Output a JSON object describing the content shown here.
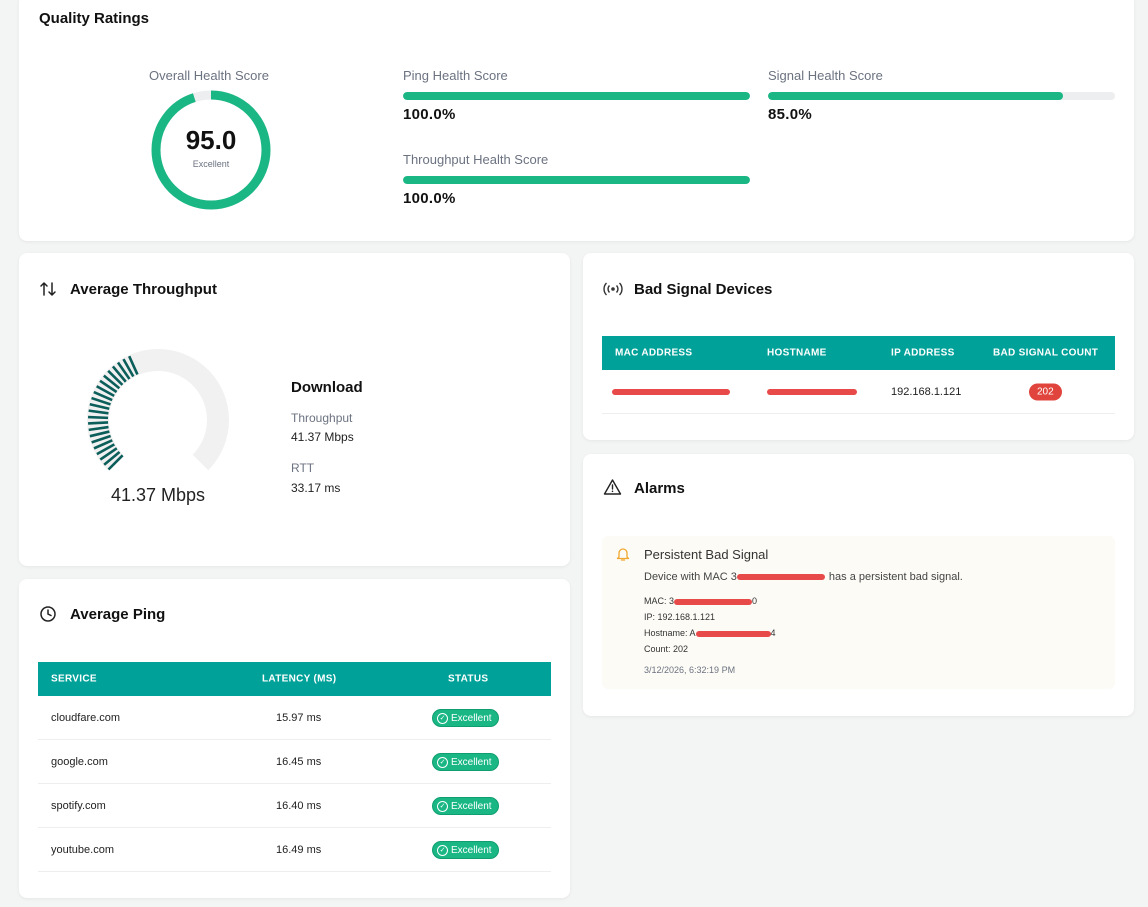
{
  "quality": {
    "title": "Quality Ratings",
    "overall": {
      "label": "Overall Health Score",
      "value": "95.0",
      "grade": "Excellent",
      "fraction": 0.95
    },
    "metrics": [
      {
        "label": "Ping Health Score",
        "value": "100.0%",
        "fraction": 1.0
      },
      {
        "label": "Signal Health Score",
        "value": "85.0%",
        "fraction": 0.85
      },
      {
        "label": "Throughput Health Score",
        "value": "100.0%",
        "fraction": 1.0
      }
    ]
  },
  "throughput": {
    "title": "Average Throughput",
    "gauge_value": "41.37 Mbps",
    "gauge_fraction": 0.41,
    "direction": "Download",
    "throughput_label": "Throughput",
    "throughput_value": "41.37 Mbps",
    "rtt_label": "RTT",
    "rtt_value": "33.17 ms"
  },
  "ping": {
    "title": "Average Ping",
    "columns": [
      "SERVICE",
      "LATENCY (MS)",
      "STATUS"
    ],
    "rows": [
      {
        "service": "cloudfare.com",
        "latency": "15.97 ms",
        "status": "Excellent"
      },
      {
        "service": "google.com",
        "latency": "16.45 ms",
        "status": "Excellent"
      },
      {
        "service": "spotify.com",
        "latency": "16.40 ms",
        "status": "Excellent"
      },
      {
        "service": "youtube.com",
        "latency": "16.49 ms",
        "status": "Excellent"
      }
    ]
  },
  "bad_signal": {
    "title": "Bad Signal Devices",
    "columns": [
      "MAC ADDRESS",
      "HOSTNAME",
      "IP ADDRESS",
      "BAD SIGNAL COUNT"
    ],
    "rows": [
      {
        "ip": "192.168.1.121",
        "count": "202"
      }
    ]
  },
  "alarms": {
    "title": "Alarms",
    "items": [
      {
        "title": "Persistent Bad Signal",
        "message_prefix": "Device with MAC 3",
        "message_suffix": "has a persistent bad signal.",
        "mac_label": "MAC: 3",
        "mac_tail": "0",
        "ip_line": "IP: 192.168.1.121",
        "hostname_label": "Hostname: A",
        "hostname_tail": "4",
        "count_line": "Count: 202",
        "timestamp": "3/12/2026, 6:32:19 PM"
      }
    ]
  },
  "colors": {
    "accent": "#1ab785",
    "teal": "#00a199",
    "gauge_dark": "#0b5e5a",
    "danger": "#e0443c",
    "warning": "#f0a830"
  }
}
